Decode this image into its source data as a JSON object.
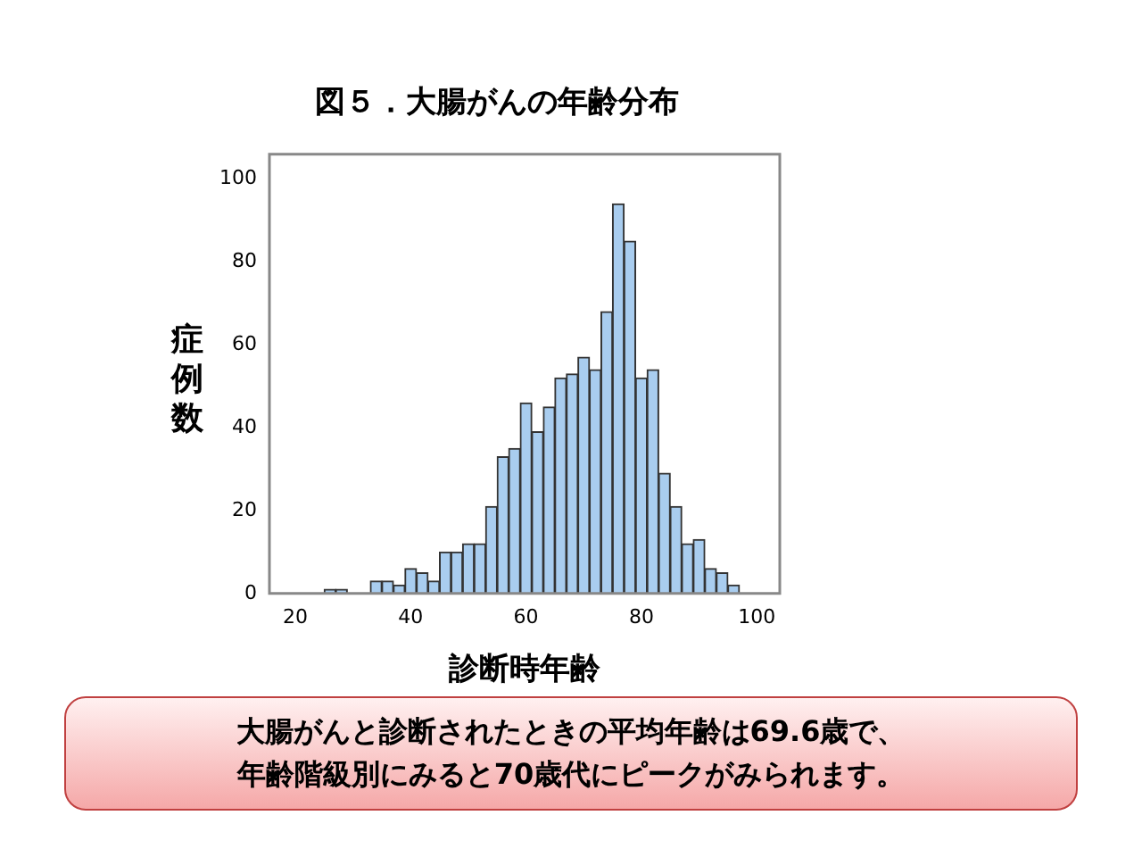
{
  "chart_data": {
    "type": "histogram",
    "title": "図５．大腸がんの年齢分布",
    "xlabel": "診断時年齢",
    "ylabel": "症例数",
    "annotations": [
      "大腸がんと診断されたときの平均年齢は69.6歳で、",
      "年齢階級別にみると70歳代にピークがみられます。"
    ],
    "bins": [
      25,
      27,
      29,
      31,
      33,
      35,
      37,
      39,
      41,
      43,
      45,
      47,
      49,
      51,
      53,
      55,
      57,
      59,
      61,
      63,
      65,
      67,
      69,
      71,
      73,
      75,
      77,
      79,
      81,
      83,
      85,
      87,
      89,
      91,
      93,
      95,
      97
    ],
    "values": [
      1,
      1,
      0,
      0,
      3,
      3,
      2,
      6,
      5,
      3,
      10,
      10,
      12,
      12,
      21,
      33,
      35,
      46,
      39,
      45,
      52,
      53,
      57,
      54,
      68,
      94,
      85,
      52,
      54,
      29,
      21,
      12,
      13,
      6,
      5,
      2
    ],
    "color": "#a9cdef",
    "xlim": [
      15.5,
      104
    ],
    "ylim": [
      0,
      106
    ],
    "xticks": [
      20,
      40,
      60,
      80,
      100
    ],
    "yticks": [
      0,
      20,
      40,
      60,
      80,
      100
    ]
  }
}
